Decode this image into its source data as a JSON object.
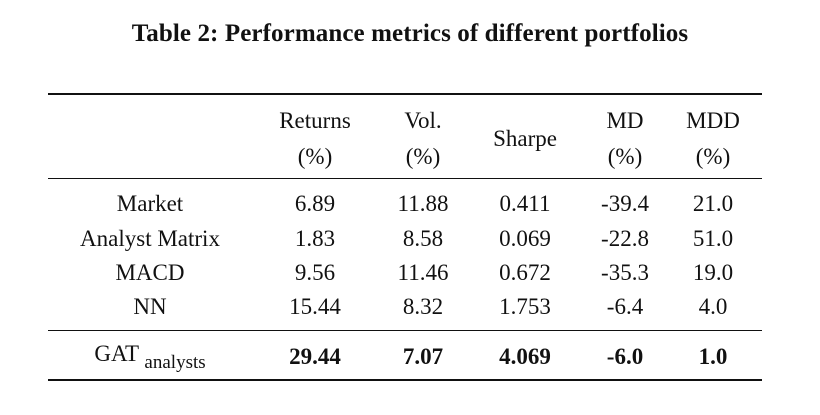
{
  "caption": "Table 2: Performance metrics of different portfolios",
  "headers": [
    {
      "line1": "Returns",
      "line2": "(%)"
    },
    {
      "line1": "Vol.",
      "line2": "(%)"
    },
    {
      "line1": "Sharpe"
    },
    {
      "line1": "MD",
      "line2": "(%)"
    },
    {
      "line1": "MDD",
      "line2": "(%)"
    }
  ],
  "rows": [
    {
      "label": "Market",
      "values": [
        "6.89",
        "11.88",
        "0.411",
        "-39.4",
        "21.0"
      ]
    },
    {
      "label": "Analyst Matrix",
      "values": [
        "1.83",
        "8.58",
        "0.069",
        "-22.8",
        "51.0"
      ]
    },
    {
      "label": "MACD",
      "values": [
        "9.56",
        "11.46",
        "0.672",
        "-35.3",
        "19.0"
      ]
    },
    {
      "label": "NN",
      "values": [
        "15.44",
        "8.32",
        "1.753",
        "-6.4",
        "4.0"
      ]
    }
  ],
  "highlight_row": {
    "label": "GAT",
    "label_subscript": "analysts",
    "values": [
      "29.44",
      "7.07",
      "4.069",
      "-6.0",
      "1.0"
    ]
  }
}
